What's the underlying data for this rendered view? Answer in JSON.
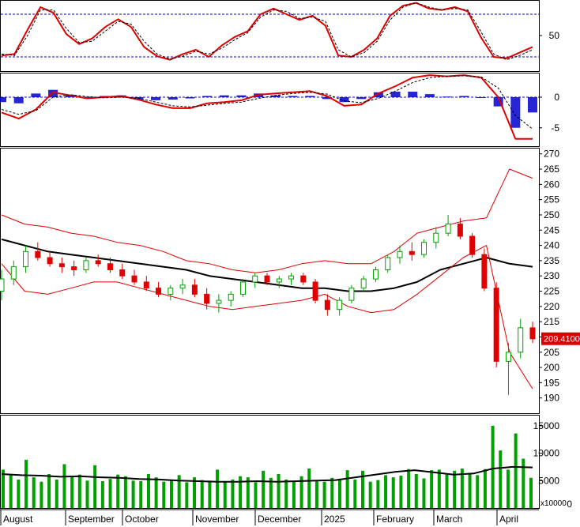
{
  "chart_data": [
    {
      "type": "line",
      "panel": "oscillator",
      "yticks": [
        50
      ],
      "reference_levels": [
        80,
        20
      ],
      "series": [
        {
          "values": [
            22,
            24,
            58,
            90,
            82,
            52,
            38,
            46,
            62,
            73,
            62,
            34,
            21,
            16,
            24,
            30,
            20,
            36,
            48,
            56,
            80,
            88,
            80,
            72,
            78,
            64,
            22,
            20,
            30,
            46,
            78,
            92,
            96,
            88,
            86,
            90,
            84,
            48,
            20,
            18,
            26,
            34
          ],
          "color": "#e00000"
        },
        {
          "values": [
            24,
            22,
            50,
            86,
            86,
            60,
            40,
            42,
            56,
            70,
            66,
            42,
            24,
            17,
            21,
            28,
            24,
            32,
            44,
            54,
            76,
            86,
            84,
            74,
            76,
            70,
            30,
            20,
            26,
            42,
            72,
            90,
            96,
            90,
            86,
            88,
            86,
            56,
            24,
            16,
            22,
            30
          ],
          "color": "#000000",
          "dashed": true
        }
      ]
    },
    {
      "type": "line",
      "panel": "macd",
      "yticks": [
        0,
        -5
      ],
      "series": [
        {
          "values": [
            -2.5,
            -3.5,
            -2,
            0.8,
            0.3,
            -0.2,
            0,
            0.2,
            -0.4,
            -1.2,
            -1.8,
            -1.8,
            -1,
            -0.8,
            -0.5,
            0.4,
            0.6,
            0.8,
            1,
            0.2,
            -1.4,
            -1.2,
            0.6,
            1.8,
            3.2,
            3.6,
            3.4,
            3.6,
            3.2,
            0,
            -6.8,
            -6.8
          ],
          "color": "#e00000"
        },
        {
          "values": [
            -2,
            -2.8,
            -2.2,
            0,
            0.4,
            0.1,
            -0.1,
            0,
            -0.2,
            -0.8,
            -1.4,
            -1.6,
            -1.3,
            -1,
            -0.8,
            -0.2,
            0.3,
            0.6,
            0.8,
            0.5,
            -0.6,
            -0.9,
            -0.2,
            1,
            2.4,
            3.2,
            3.4,
            3.5,
            3.3,
            1.5,
            -3,
            -5.2
          ],
          "color": "#000000",
          "dashed": true
        },
        {
          "type": "bar",
          "values": [
            -0.8,
            -1,
            0.6,
            1.2,
            0.4,
            0,
            0.2,
            0.3,
            -0.4,
            -0.5,
            -0.4,
            -0.2,
            0.2,
            0.3,
            0.3,
            0.6,
            0.3,
            0.2,
            0.2,
            -0.3,
            -0.8,
            -0.3,
            0.8,
            0.9,
            0.9,
            0.5,
            0.1,
            0.2,
            0,
            -1.5,
            -5,
            -2.5
          ],
          "color": "#0000cc"
        }
      ]
    },
    {
      "type": "candlestick",
      "panel": "price",
      "ylim": [
        185,
        272
      ],
      "yticks": [
        190,
        195,
        200,
        205,
        210,
        215,
        220,
        225,
        230,
        235,
        240,
        245,
        250,
        255,
        260,
        265,
        270
      ],
      "last_price_label": "209.4100",
      "candles": [
        [
          225,
          232,
          222,
          229
        ],
        [
          229,
          235,
          227,
          233
        ],
        [
          233,
          240,
          231,
          238
        ],
        [
          238,
          241,
          235,
          236
        ],
        [
          236,
          238,
          233,
          234
        ],
        [
          234,
          236,
          231,
          233
        ],
        [
          233,
          235,
          230,
          232
        ],
        [
          232,
          236,
          231,
          235
        ],
        [
          235,
          237,
          233,
          234
        ],
        [
          234,
          236,
          231,
          232
        ],
        [
          232,
          234,
          229,
          230
        ],
        [
          230,
          232,
          227,
          228
        ],
        [
          228,
          230,
          225,
          226
        ],
        [
          226,
          228,
          223,
          224
        ],
        [
          224,
          227,
          222,
          226
        ],
        [
          226,
          229,
          224,
          227
        ],
        [
          227,
          229,
          223,
          224
        ],
        [
          224,
          226,
          219,
          221
        ],
        [
          221,
          224,
          218,
          222
        ],
        [
          222,
          225,
          220,
          224
        ],
        [
          224,
          229,
          223,
          228
        ],
        [
          228,
          231,
          226,
          230
        ],
        [
          230,
          231,
          227,
          228
        ],
        [
          228,
          230,
          226,
          229
        ],
        [
          229,
          231,
          227,
          230
        ],
        [
          230,
          231,
          227,
          228
        ],
        [
          228,
          229,
          221,
          222
        ],
        [
          222,
          224,
          217,
          219
        ],
        [
          219,
          223,
          217,
          222
        ],
        [
          222,
          227,
          221,
          226
        ],
        [
          226,
          230,
          225,
          229
        ],
        [
          229,
          233,
          228,
          232
        ],
        [
          232,
          237,
          231,
          236
        ],
        [
          236,
          240,
          234,
          238
        ],
        [
          238,
          241,
          235,
          237
        ],
        [
          237,
          242,
          236,
          241
        ],
        [
          241,
          246,
          239,
          244
        ],
        [
          244,
          250,
          243,
          247
        ],
        [
          247,
          249,
          242,
          243
        ],
        [
          243,
          244,
          236,
          237
        ],
        [
          237,
          239,
          225,
          226
        ],
        [
          226,
          228,
          200,
          202
        ],
        [
          202,
          208,
          191,
          205
        ],
        [
          205,
          216,
          203,
          213
        ],
        [
          213,
          215,
          208,
          209.41
        ]
      ],
      "series": [
        {
          "values": [
            242,
            240,
            238,
            237,
            236,
            235,
            234,
            233,
            232,
            230,
            229,
            228,
            227,
            226,
            226,
            225,
            225,
            226,
            228,
            232,
            234,
            236,
            234,
            233
          ],
          "color": "#000000"
        },
        {
          "values": [
            250,
            247,
            246,
            244,
            243,
            241,
            240,
            238,
            235,
            234,
            232,
            231,
            232,
            234,
            235,
            234,
            234,
            238,
            244,
            246,
            248,
            249,
            265,
            262
          ],
          "color": "#e00000"
        },
        {
          "values": [
            234,
            225,
            224,
            226,
            228,
            228,
            226,
            224,
            222,
            220,
            219,
            220,
            221,
            222,
            224,
            220,
            218,
            219,
            224,
            230,
            236,
            240,
            205,
            193
          ],
          "color": "#e00000"
        }
      ]
    },
    {
      "type": "bar",
      "panel": "volume",
      "yticks": [
        5000,
        10000,
        15000
      ],
      "unit_label": "x10000",
      "values": [
        7000,
        6000,
        5200,
        8800,
        5600,
        4800,
        6200,
        5200,
        8000,
        5800,
        6100,
        5000,
        7800,
        4900,
        5300,
        6100,
        5800,
        5000,
        4900,
        6200,
        5600,
        4800,
        5200,
        6000,
        4700,
        5600,
        5100,
        5000,
        7000,
        4800,
        5200,
        5800,
        5600,
        4700,
        6800,
        5500,
        6200,
        5200,
        4900,
        5800,
        7200,
        5100,
        4800,
        5500,
        5200,
        6900,
        5200,
        6800,
        4800,
        5100,
        6000,
        5600,
        5900,
        7100,
        6200,
        5400,
        6900,
        7000,
        6100,
        6800,
        7200,
        6400,
        6000,
        7100,
        15000,
        10500,
        7000,
        13600,
        9000,
        5500
      ],
      "series": [
        {
          "values": [
            6200,
            6000,
            5900,
            5700,
            5800,
            5600,
            5500,
            5300,
            5200,
            5000,
            4900,
            4800,
            4800,
            4900,
            4800,
            4900,
            5000,
            5100,
            5600,
            6100,
            6600,
            6900,
            6500,
            6100,
            6300,
            7200,
            7500,
            7400
          ],
          "color": "#000000"
        }
      ]
    }
  ],
  "x_axis": {
    "months": [
      "August",
      "September",
      "October",
      "November",
      "December",
      "2025",
      "February",
      "March",
      "April"
    ]
  },
  "colors": {
    "up": "#00a000",
    "down": "#e00000",
    "macd_hist": "#0000cc",
    "volume": "#00a000",
    "ref_line": "#0000cc"
  }
}
